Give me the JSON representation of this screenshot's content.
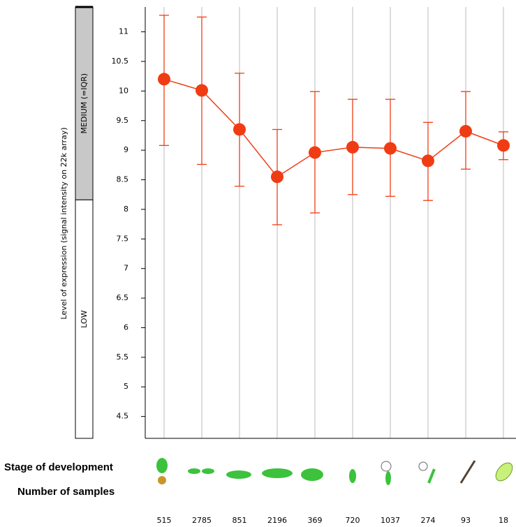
{
  "chart_data": {
    "type": "line",
    "y_axis_label": "Level of expression (signal intensity on 22k array)",
    "level_labels": [
      "MEDIUM (=IQR)",
      "LOW"
    ],
    "level_boundary": 8.16,
    "ylim": [
      4.13,
      11.42
    ],
    "yticks": [
      4.5,
      5,
      5.5,
      6,
      6.5,
      7,
      7.5,
      8,
      8.5,
      9,
      9.5,
      10,
      10.5,
      11
    ],
    "categories": [
      null,
      null,
      null,
      null,
      null,
      null,
      null,
      null,
      null,
      null
    ],
    "series": [
      {
        "color": "#f03c14",
        "values": [
          10.2,
          10.01,
          9.35,
          8.55,
          8.96,
          9.05,
          9.03,
          8.82,
          9.32,
          9.08
        ],
        "low": [
          9.08,
          8.76,
          8.39,
          7.74,
          7.94,
          8.25,
          8.22,
          8.15,
          8.68,
          8.84
        ],
        "high": [
          11.28,
          11.25,
          10.3,
          9.35,
          9.99,
          9.86,
          9.86,
          9.47,
          9.99,
          9.31
        ]
      }
    ],
    "stage_label": "Stage of development",
    "samples_label": "Number of samples",
    "sample_counts": [
      515,
      2785,
      851,
      2196,
      369,
      720,
      1037,
      274,
      93,
      18
    ]
  }
}
